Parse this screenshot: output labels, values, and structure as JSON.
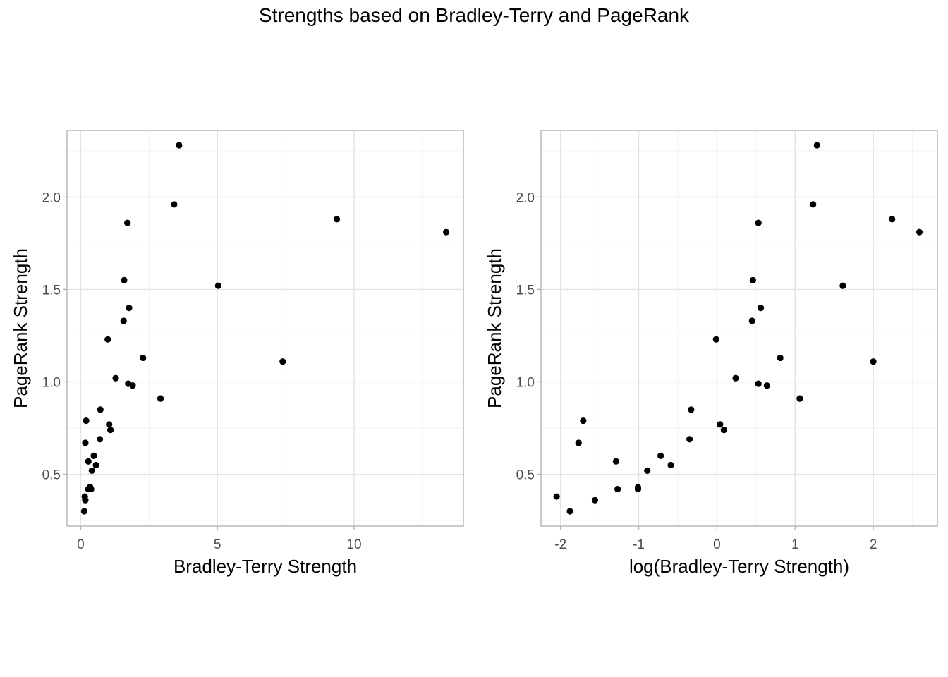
{
  "title": "Strengths based on Bradley-Terry and PageRank",
  "chart_data": [
    {
      "type": "scatter",
      "xlabel": "Bradley-Terry Strength",
      "ylabel": "PageRank Strength",
      "xlim": [
        -0.5,
        14.0
      ],
      "ylim": [
        0.22,
        2.36
      ],
      "xticks": [
        0,
        5,
        10
      ],
      "yticks": [
        0.5,
        1.0,
        1.5,
        2.0
      ],
      "xtick_labels": [
        "0",
        "5",
        "10"
      ],
      "ytick_labels": [
        "0.5",
        "1.0",
        "1.5",
        "2.0"
      ],
      "x": [
        0.13,
        0.15,
        0.17,
        0.2,
        0.17,
        0.28,
        0.28,
        0.33,
        0.35,
        0.38,
        0.41,
        0.48,
        0.56,
        0.7,
        0.72,
        0.99,
        1.04,
        1.09,
        1.28,
        1.57,
        1.59,
        1.71,
        1.74,
        1.77,
        1.9,
        2.28,
        2.92,
        3.42,
        3.6,
        5.03,
        7.39,
        9.37,
        13.37
      ],
      "y": [
        0.3,
        0.38,
        0.36,
        0.79,
        0.67,
        0.57,
        0.42,
        0.43,
        0.43,
        0.42,
        0.52,
        0.6,
        0.55,
        0.69,
        0.85,
        1.23,
        0.77,
        0.74,
        1.02,
        1.33,
        1.55,
        1.86,
        0.99,
        1.4,
        0.98,
        1.13,
        0.91,
        1.96,
        2.28,
        1.52,
        1.11,
        1.88,
        1.81
      ],
      "grid": true
    },
    {
      "type": "scatter",
      "xlabel": "log(Bradley-Terry Strength)",
      "ylabel": "PageRank Strength",
      "xlim": [
        -2.25,
        2.82
      ],
      "ylim": [
        0.22,
        2.36
      ],
      "xticks": [
        -2,
        -1,
        0,
        1,
        2
      ],
      "yticks": [
        0.5,
        1.0,
        1.5,
        2.0
      ],
      "xtick_labels": [
        "-2",
        "-1",
        "0",
        "1",
        "2"
      ],
      "ytick_labels": [
        "0.5",
        "1.0",
        "1.5",
        "2.0"
      ],
      "x": [
        -2.05,
        -1.88,
        -1.56,
        -1.71,
        -1.77,
        -1.29,
        -1.27,
        -1.01,
        -1.01,
        -0.89,
        -0.72,
        -0.59,
        -0.35,
        -0.33,
        -0.01,
        0.04,
        0.09,
        0.24,
        0.45,
        0.46,
        0.53,
        0.53,
        0.56,
        0.64,
        0.81,
        1.06,
        1.23,
        1.28,
        1.61,
        2.0,
        2.24,
        2.59
      ],
      "y": [
        0.38,
        0.3,
        0.36,
        0.79,
        0.67,
        0.57,
        0.42,
        0.43,
        0.42,
        0.52,
        0.6,
        0.55,
        0.69,
        0.85,
        1.23,
        0.77,
        0.74,
        1.02,
        1.33,
        1.55,
        0.99,
        1.86,
        1.4,
        0.98,
        1.13,
        0.91,
        1.96,
        2.28,
        1.52,
        1.11,
        1.88,
        1.81
      ],
      "grid": true
    }
  ]
}
